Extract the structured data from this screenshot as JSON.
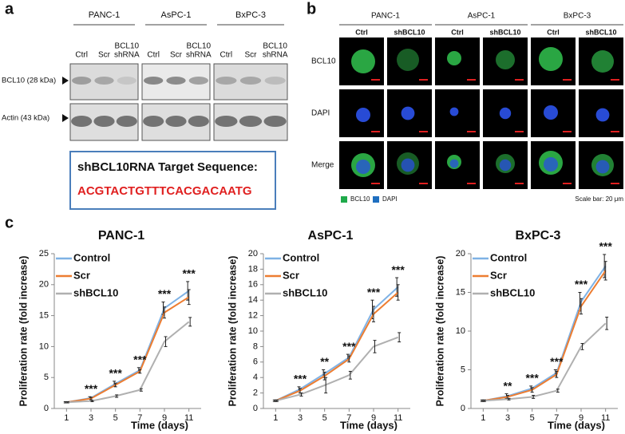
{
  "panel_a": {
    "label": "a",
    "cell_lines": [
      "PANC-1",
      "AsPC-1",
      "BxPC-3"
    ],
    "lanes": [
      [
        "Ctrl"
      ],
      [
        "Scr"
      ],
      [
        "BCL10",
        "shRNA"
      ]
    ],
    "rows": [
      "BCL10 (28 kDa)",
      "Actin (43 kDa)"
    ],
    "sequence_title": "shBCL10RNA Target Sequence:",
    "sequence": "ACGTACTGTTTCACGACAATG"
  },
  "panel_b": {
    "label": "b",
    "cell_lines": [
      "PANC-1",
      "AsPC-1",
      "BxPC-3"
    ],
    "conditions": [
      "Ctrl",
      "shBCL10"
    ],
    "rows": [
      "BCL10",
      "DAPI",
      "Merge"
    ],
    "legend": [
      {
        "name": "BCL10",
        "color": "#1faa4a"
      },
      {
        "name": "DAPI",
        "color": "#1f6fc0"
      }
    ],
    "scale_note": "Scale bar: 20 μm"
  },
  "panel_c": {
    "label": "c"
  },
  "chart_data": [
    {
      "type": "line",
      "title": "PANC-1",
      "x_label": "Time (days)",
      "y_label": "Proliferation rate (fold increase)",
      "x": [
        1,
        3,
        5,
        7,
        9,
        11
      ],
      "xlim": [
        0,
        12
      ],
      "xticks": [
        1,
        3,
        5,
        7,
        9,
        11
      ],
      "ylim": [
        0,
        25
      ],
      "yticks": [
        0,
        5,
        10,
        15,
        20,
        25
      ],
      "legend": "upper left",
      "series": [
        {
          "name": "Control",
          "color": "#7fb2e5",
          "values": [
            1,
            1.7,
            4,
            6.2,
            16.2,
            19
          ],
          "errors": [
            0.1,
            0.2,
            0.4,
            0.4,
            1,
            1.5
          ]
        },
        {
          "name": "Scr",
          "color": "#ed7d31",
          "values": [
            1,
            1.6,
            3.8,
            6,
            15.5,
            18
          ],
          "errors": [
            0.1,
            0.2,
            0.3,
            0.3,
            0.9,
            1.2
          ]
        },
        {
          "name": "shBCL10",
          "color": "#b0b0b0",
          "values": [
            1,
            1.2,
            2,
            3,
            10.8,
            14
          ],
          "errors": [
            0.1,
            0.1,
            0.2,
            0.2,
            0.8,
            0.7
          ]
        }
      ],
      "annotations": [
        {
          "x": 3,
          "text": "***"
        },
        {
          "x": 5,
          "text": "***"
        },
        {
          "x": 7,
          "text": "***"
        },
        {
          "x": 9,
          "text": "***"
        },
        {
          "x": 11,
          "text": "***"
        }
      ]
    },
    {
      "type": "line",
      "title": "AsPC-1",
      "x_label": "Time (days)",
      "y_label": "Proliferation rate (fold increase)",
      "x": [
        1,
        3,
        5,
        7,
        9,
        11
      ],
      "xlim": [
        0,
        12
      ],
      "xticks": [
        1,
        3,
        5,
        7,
        9,
        11
      ],
      "ylim": [
        0,
        20
      ],
      "yticks": [
        0,
        2,
        4,
        6,
        8,
        10,
        12,
        14,
        16,
        18,
        20
      ],
      "legend": "upper left",
      "series": [
        {
          "name": "Control",
          "color": "#7fb2e5",
          "values": [
            1,
            2.5,
            4.5,
            6.6,
            12.8,
            15.7
          ],
          "errors": [
            0.1,
            0.3,
            0.5,
            0.4,
            1.2,
            1.2
          ]
        },
        {
          "name": "Scr",
          "color": "#ed7d31",
          "values": [
            1,
            2.3,
            4.2,
            6.4,
            12.2,
            15
          ],
          "errors": [
            0.1,
            0.3,
            0.5,
            0.4,
            1,
            1
          ]
        },
        {
          "name": "shBCL10",
          "color": "#b0b0b0",
          "values": [
            1,
            1.8,
            3,
            4.3,
            8,
            9.2
          ],
          "errors": [
            0.1,
            0.2,
            1,
            0.5,
            0.8,
            0.6
          ]
        }
      ],
      "annotations": [
        {
          "x": 3,
          "text": "***"
        },
        {
          "x": 5,
          "text": "**"
        },
        {
          "x": 7,
          "text": "***"
        },
        {
          "x": 9,
          "text": "***"
        },
        {
          "x": 11,
          "text": "***"
        }
      ]
    },
    {
      "type": "line",
      "title": "BxPC-3",
      "x_label": "Time (days)",
      "y_label": "Proliferation rate (fold increase)",
      "x": [
        1,
        3,
        5,
        7,
        9,
        11
      ],
      "xlim": [
        0,
        12
      ],
      "xticks": [
        1,
        3,
        5,
        7,
        9,
        11
      ],
      "ylim": [
        0,
        20
      ],
      "yticks": [
        0,
        5,
        10,
        15,
        20
      ],
      "legend": "upper left",
      "series": [
        {
          "name": "Control",
          "color": "#7fb2e5",
          "values": [
            1,
            1.6,
            2.6,
            4.6,
            13.8,
            18.4
          ],
          "errors": [
            0.1,
            0.3,
            0.3,
            0.4,
            1.2,
            1.5
          ]
        },
        {
          "name": "Scr",
          "color": "#ed7d31",
          "values": [
            1,
            1.5,
            2.4,
            4.4,
            13.2,
            17.8
          ],
          "errors": [
            0.1,
            0.2,
            0.3,
            0.4,
            1,
            1.2
          ]
        },
        {
          "name": "shBCL10",
          "color": "#b0b0b0",
          "values": [
            1,
            1.2,
            1.5,
            2.3,
            8,
            11
          ],
          "errors": [
            0.1,
            0.1,
            0.2,
            0.2,
            0.4,
            0.8
          ]
        }
      ],
      "annotations": [
        {
          "x": 3,
          "text": "**"
        },
        {
          "x": 5,
          "text": "***"
        },
        {
          "x": 7,
          "text": "***"
        },
        {
          "x": 9,
          "text": "***"
        },
        {
          "x": 11,
          "text": "***"
        }
      ]
    }
  ]
}
